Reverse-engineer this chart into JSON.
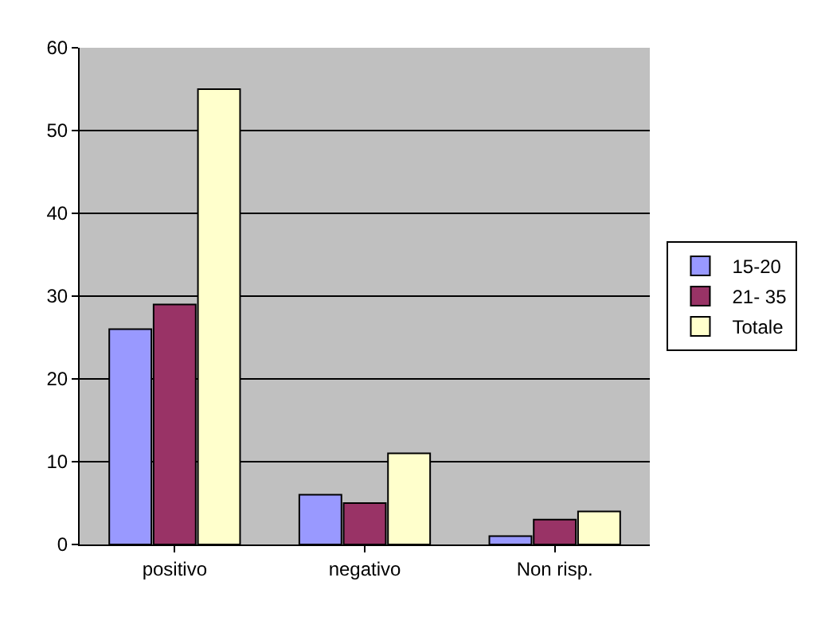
{
  "chart_data": {
    "type": "bar",
    "categories": [
      "positivo",
      "negativo",
      "Non risp."
    ],
    "series": [
      {
        "name": "15-20",
        "color": "#9999ff",
        "values": [
          26,
          6,
          1
        ]
      },
      {
        "name": "21- 35",
        "color": "#993366",
        "values": [
          29,
          5,
          3
        ]
      },
      {
        "name": "Totale",
        "color": "#ffffcc",
        "values": [
          55,
          11,
          4
        ]
      }
    ],
    "ylim": [
      0,
      60
    ],
    "yticks": [
      0,
      10,
      20,
      30,
      40,
      50,
      60
    ],
    "grid": "y",
    "legend": "right"
  }
}
